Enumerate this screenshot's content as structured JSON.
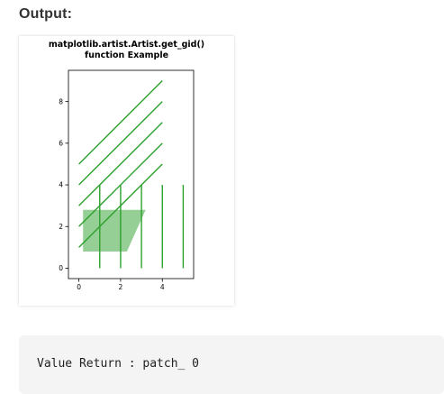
{
  "page": {
    "heading": "Output:"
  },
  "code_block": {
    "text": "Value Return : patch_ 0"
  },
  "chart_data": {
    "type": "line",
    "title": "matplotlib.artist.Artist.get_gid()\nfunction Example",
    "title_lines": [
      "matplotlib.artist.Artist.get_gid()",
      "function Example"
    ],
    "xlabel": "",
    "ylabel": "",
    "xlim": [
      -0.5,
      5.5
    ],
    "ylim": [
      -0.5,
      9.5
    ],
    "xticks": [
      0,
      2,
      4
    ],
    "yticks": [
      0,
      2,
      4,
      6,
      8
    ],
    "grid": false,
    "line_color": "#2ca02c",
    "patch_color": "#2ca02c",
    "patch_alpha": 0.5,
    "diagonal_lines": [
      {
        "x": [
          0,
          4
        ],
        "y": [
          1,
          5
        ]
      },
      {
        "x": [
          0,
          4
        ],
        "y": [
          2,
          6
        ]
      },
      {
        "x": [
          0,
          4
        ],
        "y": [
          3,
          7
        ]
      },
      {
        "x": [
          0,
          4
        ],
        "y": [
          4,
          8
        ]
      },
      {
        "x": [
          0,
          4
        ],
        "y": [
          5,
          9
        ]
      }
    ],
    "vertical_lines": [
      {
        "x": 1,
        "y": [
          0,
          4
        ]
      },
      {
        "x": 2,
        "y": [
          0,
          4
        ]
      },
      {
        "x": 3,
        "y": [
          0,
          4
        ]
      },
      {
        "x": 4,
        "y": [
          0,
          4
        ]
      },
      {
        "x": 5,
        "y": [
          0,
          4
        ]
      }
    ],
    "patch": {
      "x": [
        0.2,
        3.2,
        2.3,
        0.2
      ],
      "y": [
        2.8,
        2.8,
        0.8,
        0.8
      ]
    }
  }
}
